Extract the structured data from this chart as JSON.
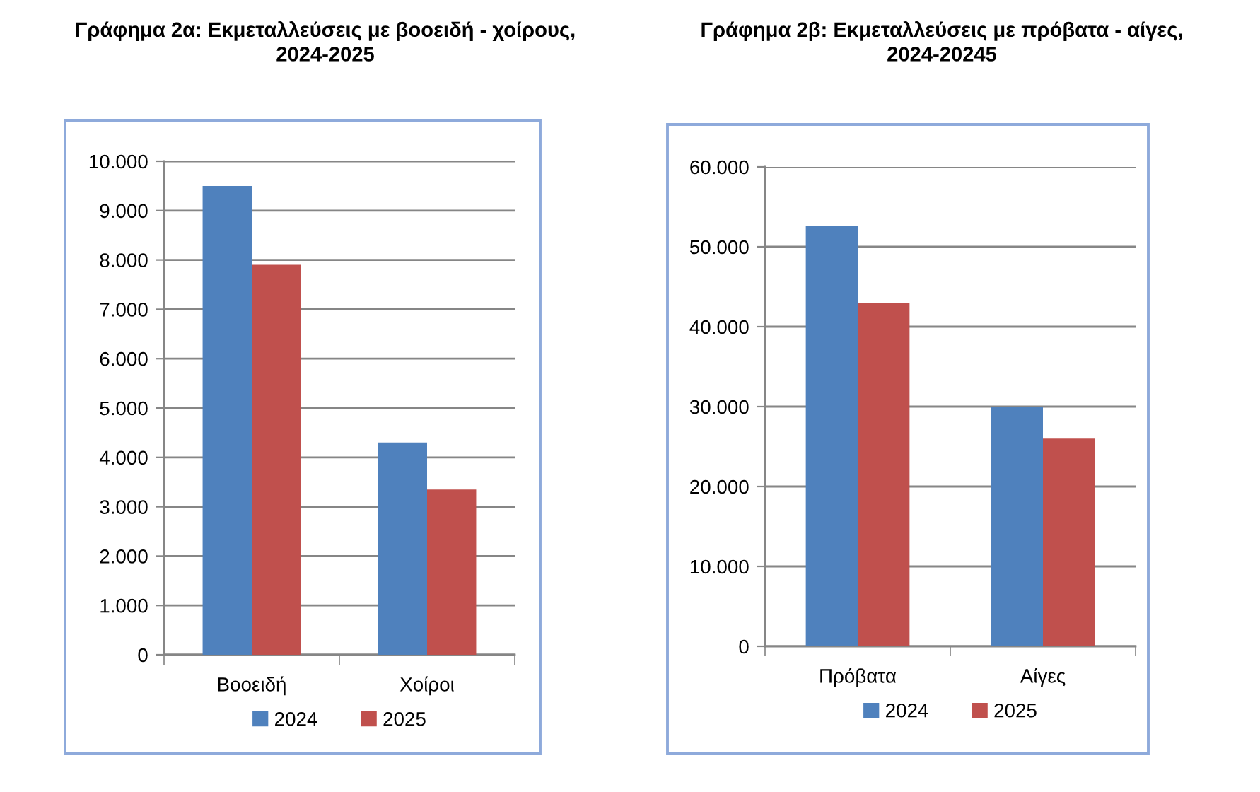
{
  "chart_data": [
    {
      "type": "bar",
      "title": "Γράφημα 2α: Εκμεταλλεύσεις με βοοειδή - χοίρους,\n2024-2025",
      "categories": [
        "Βοοειδή",
        "Χοίροι"
      ],
      "series": [
        {
          "name": "2024",
          "color": "#4f81bd",
          "values": [
            9500,
            4300
          ]
        },
        {
          "name": "2025",
          "color": "#c0504d",
          "values": [
            7900,
            3350
          ]
        }
      ],
      "ylim": [
        0,
        10000
      ],
      "yticks": [
        0,
        {
          "value": 1000,
          "label": "1.000"
        },
        {
          "value": 2000,
          "label": "2.000"
        },
        {
          "value": 3000,
          "label": "3.000"
        },
        {
          "value": 4000,
          "label": "4.000"
        },
        {
          "value": 5000,
          "label": "5.000"
        },
        {
          "value": 6000,
          "label": "6.000"
        },
        {
          "value": 7000,
          "label": "7.000"
        },
        {
          "value": 8000,
          "label": "8.000"
        },
        {
          "value": 9000,
          "label": "9.000"
        },
        {
          "value": 10000,
          "label": "10.000"
        }
      ],
      "grid": "y",
      "legend": "bottom"
    },
    {
      "type": "bar",
      "title": "Γράφημα 2β: Εκμεταλλεύσεις με πρόβατα - αίγες,\n2024-20245",
      "categories": [
        "Πρόβατα",
        "Αίγες"
      ],
      "series": [
        {
          "name": "2024",
          "color": "#4f81bd",
          "values": [
            52600,
            30000
          ]
        },
        {
          "name": "2025",
          "color": "#c0504d",
          "values": [
            43000,
            26000
          ]
        }
      ],
      "ylim": [
        0,
        60000
      ],
      "yticks": [
        0,
        {
          "value": 10000,
          "label": "10.000"
        },
        {
          "value": 20000,
          "label": "20.000"
        },
        {
          "value": 30000,
          "label": "30.000"
        },
        {
          "value": 40000,
          "label": "40.000"
        },
        {
          "value": 50000,
          "label": "50.000"
        },
        {
          "value": 60000,
          "label": "60.000"
        }
      ],
      "grid": "y",
      "legend": "bottom"
    }
  ]
}
